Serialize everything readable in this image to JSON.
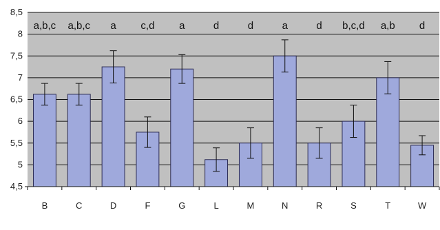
{
  "chart_data": {
    "type": "bar",
    "categories": [
      "B",
      "C",
      "D",
      "F",
      "G",
      "L",
      "M",
      "N",
      "R",
      "S",
      "T",
      "W"
    ],
    "values": [
      6.62,
      6.62,
      7.25,
      5.75,
      7.2,
      5.12,
      5.5,
      7.5,
      5.5,
      6.0,
      7.0,
      5.45
    ],
    "errors": [
      0.25,
      0.25,
      0.37,
      0.35,
      0.33,
      0.27,
      0.35,
      0.37,
      0.35,
      0.37,
      0.37,
      0.22
    ],
    "annotations": [
      "a,b,c",
      "a,b,c",
      "a",
      "c,d",
      "a",
      "d",
      "d",
      "a",
      "d",
      "b,c,d",
      "a,b",
      "d"
    ],
    "y_ticks": [
      "4,5",
      "5",
      "5,5",
      "6",
      "6,5",
      "7",
      "7,5",
      "8",
      "8,5"
    ],
    "ylim": [
      4.5,
      8.5
    ],
    "grid": true,
    "colors": {
      "bar": "#9fa9dc",
      "bar_stroke": "#2c2c54",
      "plot_bg": "#c0c0c0",
      "grid": "#111111"
    }
  }
}
